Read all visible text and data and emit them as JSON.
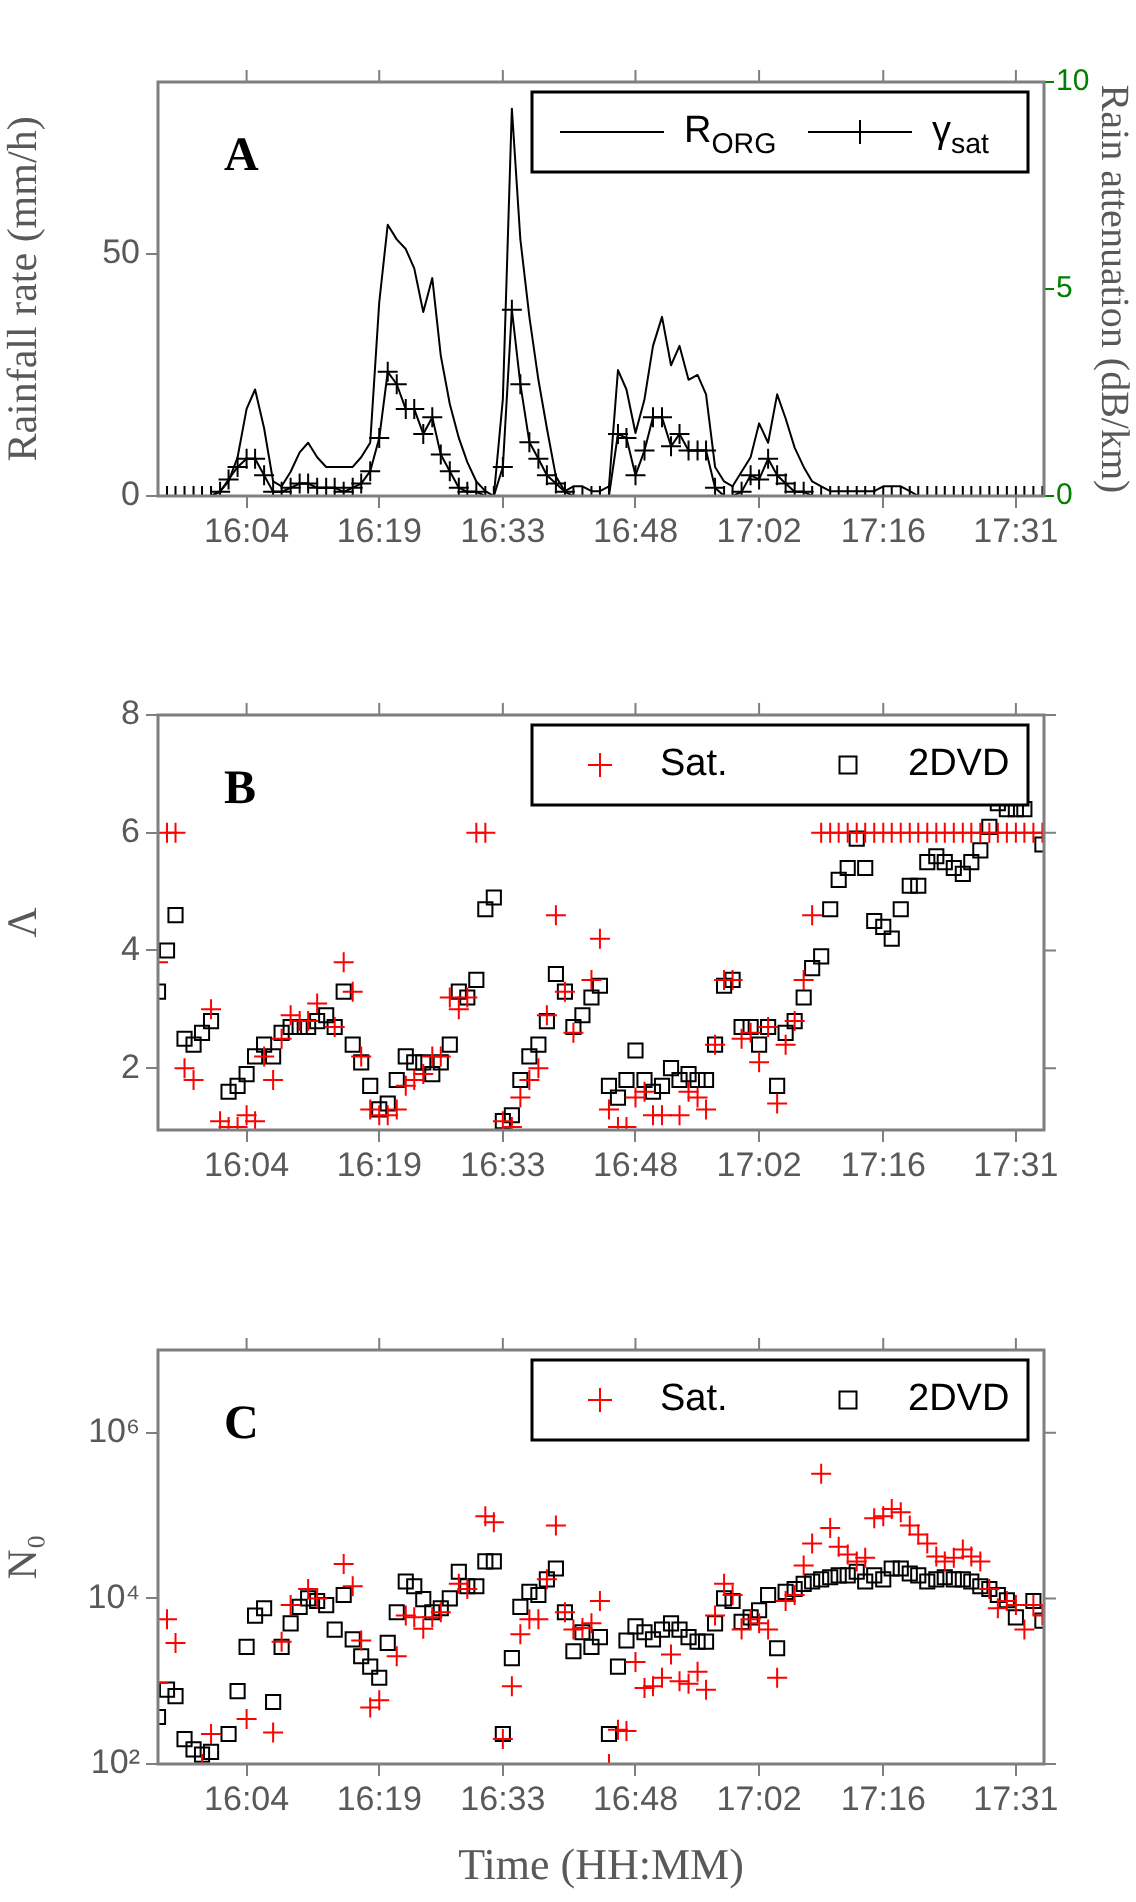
{
  "chart_data": [
    {
      "type": "line",
      "annotations": [
        "A"
      ],
      "ylabel": "Rainfall rate (mm/h)",
      "y2label": "Rain attenuation (dB/km)",
      "legend": "top right",
      "x": [
        15.9,
        15.917,
        15.933,
        15.95,
        15.967,
        15.983,
        16.0,
        16.017,
        16.033,
        16.05,
        16.067,
        16.083,
        16.1,
        16.117,
        16.133,
        16.15,
        16.167,
        16.183,
        16.2,
        16.217,
        16.233,
        16.25,
        16.267,
        16.283,
        16.3,
        16.317,
        16.333,
        16.35,
        16.367,
        16.383,
        16.4,
        16.417,
        16.433,
        16.45,
        16.467,
        16.483,
        16.5,
        16.517,
        16.533,
        16.55,
        16.567,
        16.583,
        16.6,
        16.617,
        16.633,
        16.65,
        16.667,
        16.683,
        16.7,
        16.717,
        16.733,
        16.75,
        16.767,
        16.783,
        16.8,
        16.817,
        16.833,
        16.85,
        16.867,
        16.883,
        16.9,
        16.917,
        16.933,
        16.95,
        16.967,
        16.983,
        17.0,
        17.017,
        17.033,
        17.05,
        17.067,
        17.083,
        17.1,
        17.117,
        17.133,
        17.15,
        17.167,
        17.183,
        17.2,
        17.217,
        17.233,
        17.25,
        17.267,
        17.283,
        17.3,
        17.317,
        17.333,
        17.35,
        17.367,
        17.383,
        17.4,
        17.417,
        17.433,
        17.45,
        17.467,
        17.483,
        17.5,
        17.517,
        17.533,
        17.55,
        17.567
      ],
      "series": [
        {
          "name": "R$_{ORG}$",
          "color": "#000000",
          "marker": "none",
          "values": [
            0,
            0,
            0,
            0,
            0,
            0,
            0,
            1,
            3,
            8,
            18,
            22,
            14,
            3,
            2,
            5,
            9,
            11,
            8,
            6,
            6,
            6,
            6,
            8,
            11,
            40,
            56,
            53,
            51,
            47,
            38,
            45,
            29,
            19,
            12,
            7,
            3,
            1,
            0,
            20,
            80,
            53,
            37,
            24,
            14,
            4,
            1,
            2,
            2,
            1,
            1,
            2,
            26,
            22,
            13,
            20,
            31,
            37,
            27,
            31,
            24,
            25,
            21,
            6,
            3,
            2,
            5,
            8,
            15,
            11,
            21,
            16,
            10,
            6,
            3,
            2,
            1,
            1,
            1,
            1,
            1,
            1,
            2,
            2,
            2,
            1,
            0,
            0,
            0,
            0,
            0,
            0,
            0,
            0,
            0,
            0,
            0,
            0,
            0,
            0,
            0
          ]
        },
        {
          "name": "γ$_{sat}$",
          "color": "#000000",
          "marker": "cross",
          "axis": "y2",
          "values": [
            0,
            0,
            0,
            0,
            0,
            0,
            0,
            0.1,
            0.4,
            0.7,
            0.9,
            0.9,
            0.5,
            0.1,
            0.1,
            0.2,
            0.3,
            0.3,
            0.2,
            0.2,
            0.2,
            0.1,
            0.2,
            0.3,
            0.6,
            1.4,
            3.0,
            2.7,
            2.1,
            2.1,
            1.5,
            1.9,
            1.0,
            0.6,
            0.2,
            0.1,
            0.1,
            0,
            0,
            0.7,
            4.5,
            2.7,
            1.3,
            0.9,
            0.5,
            0.3,
            0.1,
            0,
            0,
            0,
            0,
            0,
            1.5,
            1.4,
            0.5,
            1.1,
            1.9,
            1.9,
            1.2,
            1.5,
            1.1,
            1.1,
            1.1,
            0.2,
            0,
            0,
            0.1,
            0.5,
            0.4,
            0.9,
            0.5,
            0.3,
            0.1,
            0.1,
            0,
            0,
            0,
            0,
            0,
            0,
            0,
            0,
            0,
            0,
            0,
            0,
            0,
            0,
            0,
            0,
            0,
            0,
            0,
            0,
            0,
            0,
            0,
            0,
            0,
            0,
            0
          ]
        }
      ],
      "xlim": [
        15.9,
        17.57
      ],
      "xticks": [
        {
          "value": 16.067,
          "label": "16:04"
        },
        {
          "value": 16.317,
          "label": "16:19"
        },
        {
          "value": 16.55,
          "label": "16:33"
        },
        {
          "value": 16.8,
          "label": "16:48"
        },
        {
          "value": 17.033,
          "label": "17:02"
        },
        {
          "value": 17.267,
          "label": "17:16"
        },
        {
          "value": 17.517,
          "label": "17:31"
        }
      ],
      "ylim": [
        0,
        85.5
      ],
      "yticks": [
        0,
        50
      ],
      "y2lim": [
        0,
        10
      ],
      "y2ticks": [
        0,
        5,
        10
      ]
    },
    {
      "type": "scatter",
      "annotations": [
        "B"
      ],
      "ylabel": "Λ",
      "legend": "top right",
      "x": [
        15.9,
        15.917,
        15.933,
        15.95,
        15.967,
        15.983,
        16.0,
        16.017,
        16.033,
        16.05,
        16.067,
        16.083,
        16.1,
        16.117,
        16.133,
        16.15,
        16.167,
        16.183,
        16.2,
        16.217,
        16.233,
        16.25,
        16.267,
        16.283,
        16.3,
        16.317,
        16.333,
        16.35,
        16.367,
        16.383,
        16.4,
        16.417,
        16.433,
        16.45,
        16.467,
        16.483,
        16.5,
        16.517,
        16.533,
        16.55,
        16.567,
        16.583,
        16.6,
        16.617,
        16.633,
        16.65,
        16.667,
        16.683,
        16.7,
        16.717,
        16.733,
        16.75,
        16.767,
        16.783,
        16.8,
        16.817,
        16.833,
        16.85,
        16.867,
        16.883,
        16.9,
        16.917,
        16.933,
        16.95,
        16.967,
        16.983,
        17.0,
        17.017,
        17.033,
        17.05,
        17.067,
        17.083,
        17.1,
        17.117,
        17.133,
        17.15,
        17.167,
        17.183,
        17.2,
        17.217,
        17.233,
        17.25,
        17.267,
        17.283,
        17.3,
        17.317,
        17.333,
        17.35,
        17.367,
        17.383,
        17.4,
        17.417,
        17.433,
        17.45,
        17.467,
        17.483,
        17.5,
        17.517,
        17.533,
        17.55,
        17.567
      ],
      "series": [
        {
          "name": "Sat.",
          "color": "#ff0000",
          "marker": "cross",
          "values": [
            3.8,
            6.0,
            6.0,
            2.0,
            1.8,
            null,
            3.0,
            1.1,
            1.0,
            1.0,
            1.2,
            1.1,
            2.2,
            1.8,
            2.5,
            2.9,
            2.8,
            2.8,
            3.1,
            null,
            2.7,
            3.8,
            3.3,
            2.2,
            1.3,
            1.2,
            1.2,
            1.3,
            1.7,
            1.8,
            1.9,
            2.2,
            2.2,
            3.2,
            3.0,
            3.2,
            6.0,
            6.0,
            null,
            1.1,
            1.0,
            1.5,
            1.8,
            2.0,
            2.9,
            4.6,
            3.3,
            2.6,
            null,
            3.5,
            4.2,
            1.3,
            1.0,
            1.0,
            1.5,
            1.6,
            1.2,
            1.2,
            null,
            1.2,
            1.6,
            1.5,
            1.3,
            2.4,
            3.5,
            3.5,
            2.5,
            2.6,
            2.1,
            2.7,
            1.4,
            2.4,
            2.8,
            3.5,
            4.6,
            6.0,
            6.0,
            6.0,
            6.0,
            6.0,
            6.0,
            6.0,
            6.0,
            6.0,
            6.0,
            6.0,
            6.0,
            6.0,
            6.0,
            6.0,
            6.0,
            6.0,
            6.0,
            6.0,
            6.0,
            6.0,
            6.0,
            6.0,
            6.0,
            6.0,
            6.0
          ]
        },
        {
          "name": "2DVD",
          "color": "#000000",
          "marker": "square",
          "values": [
            3.3,
            4.0,
            4.6,
            2.5,
            2.4,
            2.6,
            2.8,
            null,
            1.6,
            1.7,
            1.9,
            2.2,
            2.4,
            2.2,
            2.6,
            2.7,
            2.7,
            2.7,
            2.8,
            2.9,
            2.7,
            3.3,
            2.4,
            2.1,
            1.7,
            1.3,
            1.4,
            1.8,
            2.2,
            2.1,
            2.1,
            1.9,
            2.1,
            2.4,
            3.3,
            3.2,
            3.5,
            4.7,
            4.9,
            1.1,
            1.2,
            1.8,
            2.2,
            2.4,
            2.8,
            3.6,
            3.3,
            2.7,
            2.9,
            3.2,
            3.4,
            1.7,
            1.5,
            1.8,
            2.3,
            1.8,
            1.6,
            1.7,
            2.0,
            1.8,
            1.9,
            1.8,
            1.8,
            2.4,
            3.4,
            3.5,
            2.7,
            2.7,
            2.4,
            2.7,
            1.7,
            2.6,
            2.8,
            3.2,
            3.7,
            3.9,
            4.7,
            5.2,
            5.4,
            5.9,
            5.4,
            4.5,
            4.4,
            4.2,
            4.7,
            5.1,
            5.1,
            5.5,
            5.6,
            5.5,
            5.4,
            5.3,
            5.5,
            5.7,
            6.1,
            6.5,
            6.4,
            6.4,
            6.4,
            null,
            5.8
          ]
        }
      ],
      "xlim": [
        15.9,
        17.57
      ],
      "xticks": [
        {
          "value": 16.067,
          "label": "16:04"
        },
        {
          "value": 16.317,
          "label": "16:19"
        },
        {
          "value": 16.55,
          "label": "16:33"
        },
        {
          "value": 16.8,
          "label": "16:48"
        },
        {
          "value": 17.033,
          "label": "17:02"
        },
        {
          "value": 17.267,
          "label": "17:16"
        },
        {
          "value": 17.517,
          "label": "17:31"
        }
      ],
      "ylim": [
        0.95,
        8
      ],
      "yticks": [
        2,
        4,
        6,
        8
      ]
    },
    {
      "type": "scatter",
      "annotations": [
        "C"
      ],
      "ylabel": "N₀",
      "xlabel": "Time (HH:MM)",
      "legend": "top right",
      "log": "y",
      "x": [
        15.9,
        15.917,
        15.933,
        15.95,
        15.967,
        15.983,
        16.0,
        16.017,
        16.033,
        16.05,
        16.067,
        16.083,
        16.1,
        16.117,
        16.133,
        16.15,
        16.167,
        16.183,
        16.2,
        16.217,
        16.233,
        16.25,
        16.267,
        16.283,
        16.3,
        16.317,
        16.333,
        16.35,
        16.367,
        16.383,
        16.4,
        16.417,
        16.433,
        16.45,
        16.467,
        16.483,
        16.5,
        16.517,
        16.533,
        16.55,
        16.567,
        16.583,
        16.6,
        16.617,
        16.633,
        16.65,
        16.667,
        16.683,
        16.7,
        16.717,
        16.733,
        16.75,
        16.767,
        16.783,
        16.8,
        16.817,
        16.833,
        16.85,
        16.867,
        16.883,
        16.9,
        16.917,
        16.933,
        16.95,
        16.967,
        16.983,
        17.0,
        17.017,
        17.033,
        17.05,
        17.067,
        17.083,
        17.1,
        17.117,
        17.133,
        17.15,
        17.167,
        17.183,
        17.2,
        17.217,
        17.233,
        17.25,
        17.267,
        17.283,
        17.3,
        17.317,
        17.333,
        17.35,
        17.367,
        17.383,
        17.4,
        17.417,
        17.433,
        17.45,
        17.467,
        17.483,
        17.5,
        17.517,
        17.533,
        17.55,
        17.567
      ],
      "series": [
        {
          "name": "Sat.",
          "color": "#ff0000",
          "marker": "cross",
          "values": [
            950,
            5600,
            2900,
            null,
            null,
            100,
            230,
            null,
            null,
            null,
            350,
            null,
            null,
            240,
            3000,
            8300,
            null,
            13000,
            10000,
            null,
            null,
            26000,
            14000,
            3100,
            480,
            590,
            null,
            2000,
            6200,
            5900,
            4300,
            5900,
            6800,
            null,
            15000,
            13000,
            null,
            98000,
            83000,
            200,
            870,
            3700,
            5600,
            5600,
            17000,
            76000,
            6800,
            4200,
            4400,
            5000,
            9300,
            100,
            260,
            250,
            1700,
            830,
            870,
            1100,
            2100,
            1000,
            930,
            1300,
            790,
            6200,
            15000,
            11000,
            4200,
            5600,
            5000,
            4200,
            1100,
            9300,
            11000,
            25000,
            46000,
            320000,
            71000,
            42000,
            34000,
            28000,
            31000,
            93000,
            98000,
            120000,
            110000,
            76000,
            59000,
            46000,
            32000,
            28000,
            31000,
            39000,
            32000,
            28000,
            13000,
            7600,
            9300,
            8300,
            4200,
            8300,
            6200
          ]
        },
        {
          "name": "2DVD",
          "color": "#000000",
          "marker": "square",
          "values": [
            370,
            790,
            660,
            200,
            150,
            130,
            140,
            null,
            230,
            760,
            2600,
            6200,
            7600,
            560,
            2600,
            5000,
            7900,
            10000,
            9300,
            8300,
            4200,
            11000,
            3200,
            2000,
            1500,
            1100,
            2900,
            6800,
            16000,
            14000,
            9800,
            6800,
            7600,
            10000,
            21000,
            14000,
            14000,
            28000,
            28000,
            230,
            1900,
            7900,
            12000,
            11000,
            17000,
            23000,
            6800,
            2300,
            3900,
            2600,
            3400,
            230,
            1500,
            3100,
            4600,
            3900,
            3200,
            4200,
            5000,
            4200,
            3400,
            3000,
            3000,
            5000,
            10000,
            9300,
            5200,
            5900,
            7200,
            11000,
            2500,
            12000,
            13000,
            15000,
            16000,
            17000,
            18000,
            19000,
            19000,
            21000,
            16000,
            19000,
            17000,
            23000,
            23000,
            20000,
            19000,
            16000,
            17000,
            18000,
            17000,
            17000,
            16000,
            14000,
            13000,
            11000,
            9500,
            5900,
            null,
            9300,
            5400
          ]
        }
      ],
      "xlim": [
        15.9,
        17.57
      ],
      "xticks": [
        {
          "value": 16.067,
          "label": "16:04"
        },
        {
          "value": 16.317,
          "label": "16:19"
        },
        {
          "value": 16.55,
          "label": "16:33"
        },
        {
          "value": 16.8,
          "label": "16:48"
        },
        {
          "value": 17.033,
          "label": "17:02"
        },
        {
          "value": 17.267,
          "label": "17:16"
        },
        {
          "value": 17.517,
          "label": "17:31"
        }
      ],
      "ylim": [
        100,
        10000000
      ],
      "yticks": [
        {
          "value": 100,
          "label": "10²"
        },
        {
          "value": 10000,
          "label": "10⁴"
        },
        {
          "value": 1000000,
          "label": "10⁶"
        }
      ]
    }
  ]
}
